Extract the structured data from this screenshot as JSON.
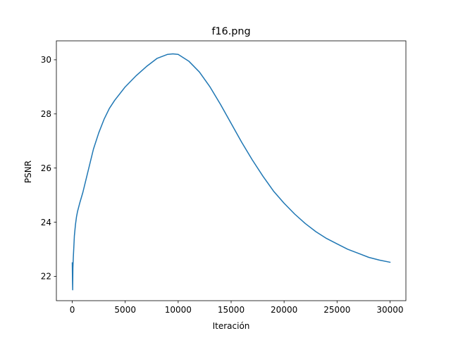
{
  "chart_data": {
    "type": "line",
    "title": "f16.png",
    "xlabel": "Iteración",
    "ylabel": "PSNR",
    "xlim": [
      -1500,
      31500
    ],
    "ylim": [
      21.1,
      30.7
    ],
    "xticks": [
      0,
      5000,
      10000,
      15000,
      20000,
      25000,
      30000
    ],
    "xtick_labels": [
      "0",
      "5000",
      "10000",
      "15000",
      "20000",
      "25000",
      "30000"
    ],
    "yticks": [
      22,
      24,
      26,
      28,
      30
    ],
    "ytick_labels": [
      "22",
      "24",
      "26",
      "28",
      "30"
    ],
    "grid": false,
    "legend": "none",
    "series": [
      {
        "color": "#1f77b4",
        "x": [
          0,
          20,
          40,
          60,
          100,
          150,
          200,
          300,
          400,
          500,
          700,
          1000,
          1500,
          2000,
          2500,
          3000,
          3500,
          4000,
          5000,
          6000,
          7000,
          8000,
          9000,
          9500,
          10000,
          11000,
          12000,
          13000,
          14000,
          15000,
          16000,
          17000,
          18000,
          19000,
          20000,
          21000,
          22000,
          23000,
          24000,
          25000,
          26000,
          27000,
          28000,
          29000,
          30000
        ],
        "y": [
          22.5,
          21.9,
          21.5,
          22.3,
          22.7,
          23.1,
          23.5,
          23.9,
          24.2,
          24.4,
          24.7,
          25.1,
          25.9,
          26.7,
          27.3,
          27.8,
          28.2,
          28.5,
          29.0,
          29.4,
          29.75,
          30.05,
          30.2,
          30.22,
          30.2,
          29.95,
          29.55,
          29.0,
          28.35,
          27.65,
          26.95,
          26.3,
          25.7,
          25.15,
          24.7,
          24.3,
          23.95,
          23.65,
          23.4,
          23.2,
          23.0,
          22.85,
          22.7,
          22.6,
          22.52
        ]
      }
    ]
  }
}
